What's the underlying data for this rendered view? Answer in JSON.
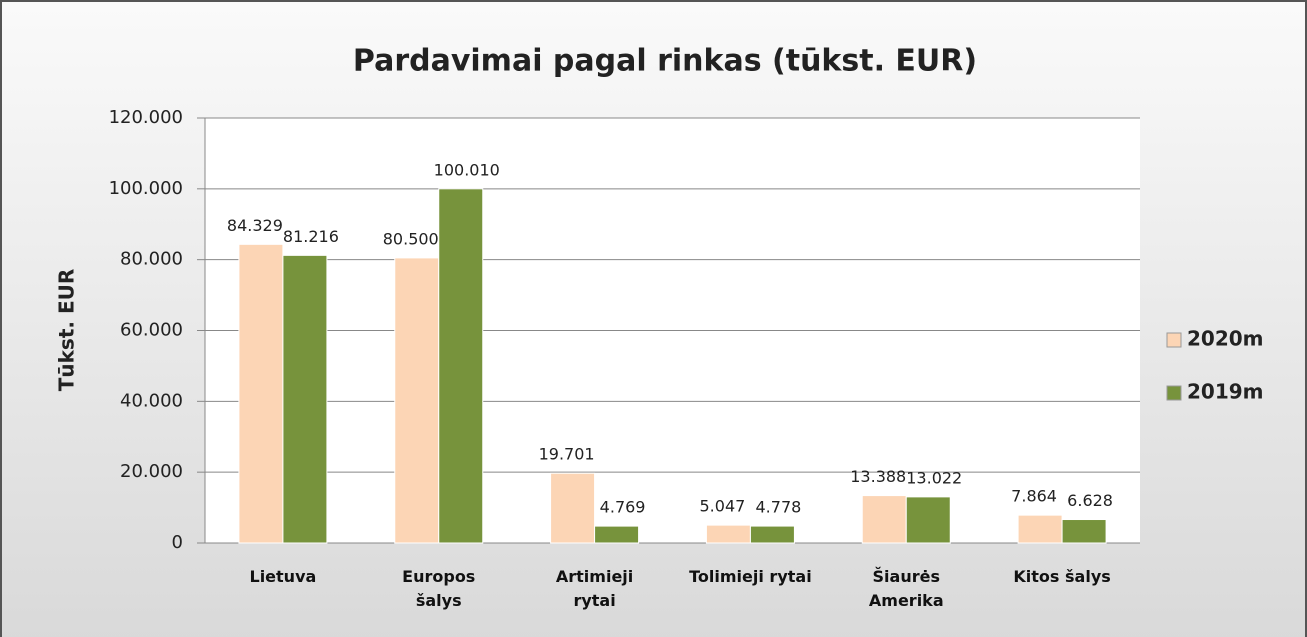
{
  "chart_data": {
    "type": "bar",
    "title": "Pardavimai pagal rinkas (tūkst. EUR)",
    "y_label": "Tūkst. EUR",
    "categories": [
      "Lietuva",
      "Europos šalys",
      "Artimieji rytai",
      "Tolimieji rytai",
      "Šiaurės Amerika",
      "Kitos šalys"
    ],
    "series": [
      {
        "name": "2020m",
        "color": "#fcd5b5",
        "values": [
          84329,
          80500,
          19701,
          5047,
          13388,
          7864
        ],
        "value_labels": [
          "84.329",
          "80.500",
          "19.701",
          "5.047",
          "13.388",
          "7.864"
        ]
      },
      {
        "name": "2019m",
        "color": "#77933c",
        "values": [
          81216,
          100010,
          4769,
          4778,
          13022,
          6628
        ],
        "value_labels": [
          "81.216",
          "100.010",
          "4.769",
          "4.778",
          "13.022",
          "6.628"
        ]
      }
    ],
    "ylim": [
      0,
      120000
    ],
    "yticks": [
      0,
      {
        "value": 20000,
        "label": "20.000"
      },
      {
        "value": 40000,
        "label": "40.000"
      },
      {
        "value": 60000,
        "label": "60.000"
      },
      {
        "value": 80000,
        "label": "80.000"
      },
      {
        "value": 100000,
        "label": "100.000"
      },
      {
        "value": 120000,
        "label": "120.000"
      }
    ],
    "grid": true,
    "legend": "right"
  }
}
